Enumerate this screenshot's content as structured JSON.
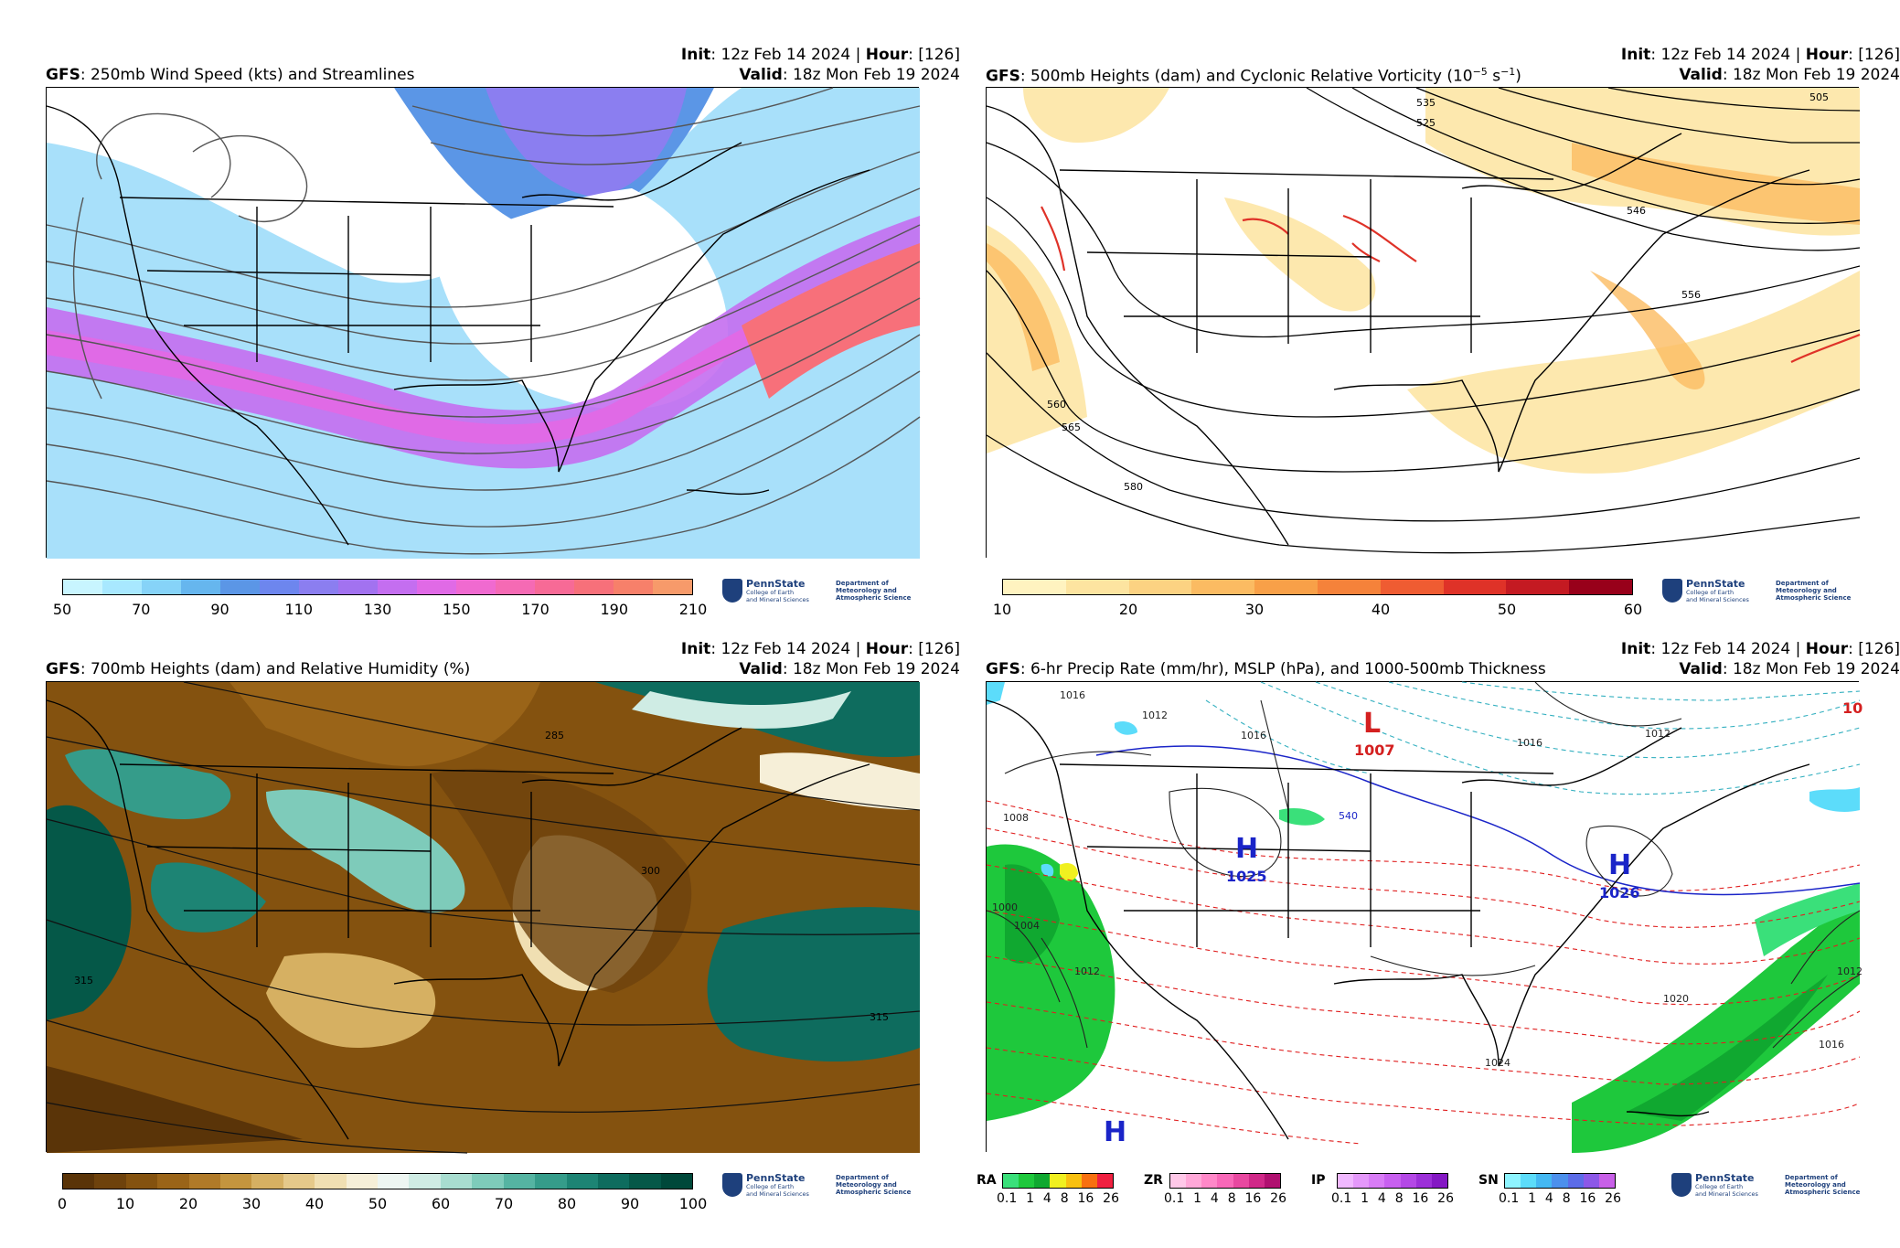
{
  "panels": [
    {
      "model": "GFS",
      "title_rest": ": 250mb Wind Speed (kts) and Streamlines",
      "init_label": "Init",
      "init_value": ": 12z Feb 14 2024 | ",
      "hour_label": "Hour",
      "hour_value": ": [126]",
      "valid_label": "Valid",
      "valid_value": ": 18z Mon Feb 19 2024",
      "colorbar": {
        "ticks": [
          "50",
          "70",
          "90",
          "110",
          "130",
          "150",
          "170",
          "190",
          "210"
        ],
        "colors": [
          "#c8f5ff",
          "#a8e8ff",
          "#86d3f8",
          "#66b6ee",
          "#5b96e6",
          "#6d86ee",
          "#8b7ef0",
          "#a272f0",
          "#c46ef0",
          "#e06ae6",
          "#f06ad0",
          "#f56ab4",
          "#f76a96",
          "#f7707a",
          "#f7806a",
          "#f79a6a"
        ]
      },
      "contour_labels": []
    },
    {
      "model": "GFS",
      "title_rest": ": 500mb Heights (dam) and Cyclonic Relative Vorticity (10",
      "title_sup1": "−5",
      "title_mid": " s",
      "title_sup2": "−1",
      "title_end": ")",
      "init_label": "Init",
      "init_value": ": 12z Feb 14 2024 | ",
      "hour_label": "Hour",
      "hour_value": ": [126]",
      "valid_label": "Valid",
      "valid_value": ": 18z Mon Feb 19 2024",
      "colorbar": {
        "ticks": [
          "10",
          "20",
          "30",
          "40",
          "50",
          "60"
        ],
        "colors": [
          "#fff3c0",
          "#fde4a0",
          "#fcd282",
          "#fbbb62",
          "#f8a048",
          "#f5823a",
          "#ef5c32",
          "#df3228",
          "#c41a22",
          "#98001a"
        ]
      },
      "contour_labels": [
        "505",
        "525",
        "535",
        "546",
        "556",
        "560",
        "565",
        "580"
      ]
    },
    {
      "model": "GFS",
      "title_rest": ": 700mb Heights (dam) and Relative Humidity (%)",
      "init_label": "Init",
      "init_value": ": 12z Feb 14 2024 | ",
      "hour_label": "Hour",
      "hour_value": ": [126]",
      "valid_label": "Valid",
      "valid_value": ": 18z Mon Feb 19 2024",
      "colorbar": {
        "ticks": [
          "0",
          "10",
          "20",
          "30",
          "40",
          "50",
          "60",
          "70",
          "80",
          "90",
          "100"
        ],
        "colors": [
          "#5a3408",
          "#6e420c",
          "#84520f",
          "#9a6418",
          "#b07a28",
          "#c4953e",
          "#d6b062",
          "#e5c98a",
          "#f0dfb2",
          "#f6efd8",
          "#eef6f2",
          "#cfece4",
          "#a8ddd0",
          "#7ecbba",
          "#55b4a2",
          "#359c8a",
          "#1d8474",
          "#0e6c5e",
          "#055848",
          "#00483a"
        ]
      },
      "contour_labels": [
        "285",
        "300",
        "315",
        "315"
      ]
    },
    {
      "model": "GFS",
      "title_rest": ": 6-hr Precip Rate (mm/hr), MSLP (hPa), and 1000-500mb Thickness",
      "init_label": "Init",
      "init_value": ": 12z Feb 14 2024 | ",
      "hour_label": "Hour",
      "hour_value": ": [126]",
      "valid_label": "Valid",
      "valid_value": ": 18z Mon Feb 19 2024",
      "precip_types": [
        {
          "label": "RA",
          "colors": [
            "#3ae07a",
            "#1ec83c",
            "#10a830",
            "#f0f020",
            "#f8c010",
            "#f87010",
            "#f02040"
          ]
        },
        {
          "label": "ZR",
          "colors": [
            "#ffc8e8",
            "#ffa8d8",
            "#ff88c8",
            "#f868b8",
            "#e848a0",
            "#d02888",
            "#b01070"
          ]
        },
        {
          "label": "IP",
          "colors": [
            "#f0b8ff",
            "#e498fa",
            "#d87cf6",
            "#c860f0",
            "#b448e6",
            "#9c30d8",
            "#8418c4"
          ]
        },
        {
          "label": "SN",
          "colors": [
            "#8ef4ff",
            "#5cdcfa",
            "#44b8f2",
            "#4c90ec",
            "#5c6ce8",
            "#8c58e8",
            "#c860e8"
          ]
        }
      ],
      "precip_ticks": [
        "0.1",
        "1",
        "4",
        "8",
        "16",
        "26"
      ],
      "pressure_centers": [
        {
          "letter": "L",
          "value": "1007",
          "color": "#d42020"
        },
        {
          "letter": "H",
          "value": "1025",
          "color": "#1a24c8"
        },
        {
          "letter": "H",
          "value": "1026",
          "color": "#1a24c8"
        },
        {
          "letter": "H",
          "value": "",
          "color": "#1a24c8"
        },
        {
          "letter": "",
          "value": "10",
          "color": "#d42020"
        }
      ],
      "contour_labels": [
        "1016",
        "1012",
        "1008",
        "1004",
        "1000",
        "1012",
        "1016",
        "540",
        "1016",
        "1020",
        "1024",
        "1012",
        "1016",
        "1012"
      ]
    }
  ],
  "logo": {
    "university": "PennState",
    "college_line1": "College of Earth",
    "college_line2": "and Mineral Sciences",
    "dept_line1": "Department of",
    "dept_line2": "Meteorology and",
    "dept_line3": "Atmospheric Science"
  }
}
